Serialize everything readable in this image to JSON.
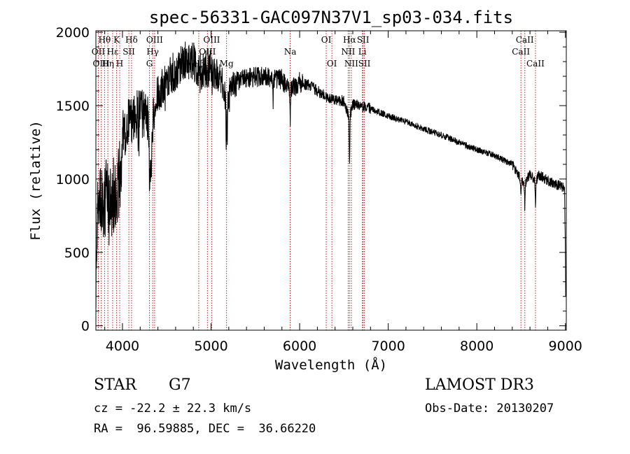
{
  "chart_data": {
    "type": "line",
    "title": "spec-56331-GAC097N37V1_sp03-034.fits",
    "xlabel": "Wavelength (Å)",
    "ylabel": "Flux (relative)",
    "xlim": [
      3700,
      9010
    ],
    "ylim": [
      -30,
      2010
    ],
    "xticks": [
      4000,
      5000,
      6000,
      7000,
      8000,
      9000
    ],
    "yticks": [
      0,
      500,
      1000,
      1500,
      2000
    ],
    "spectrum_anchors": [
      [
        3700,
        0
      ],
      [
        3705,
        600
      ],
      [
        3720,
        880
      ],
      [
        3740,
        760
      ],
      [
        3760,
        880
      ],
      [
        3790,
        820
      ],
      [
        3820,
        900
      ],
      [
        3850,
        860
      ],
      [
        3880,
        780
      ],
      [
        3900,
        920
      ],
      [
        3920,
        860
      ],
      [
        3940,
        800
      ],
      [
        3960,
        1050
      ],
      [
        3980,
        1000
      ],
      [
        4000,
        1350
      ],
      [
        4020,
        1280
      ],
      [
        4050,
        1380
      ],
      [
        4100,
        1400
      ],
      [
        4150,
        1430
      ],
      [
        4200,
        1480
      ],
      [
        4250,
        1440
      ],
      [
        4300,
        1400
      ],
      [
        4320,
        1000
      ],
      [
        4350,
        1450
      ],
      [
        4400,
        1580
      ],
      [
        4500,
        1680
      ],
      [
        4600,
        1740
      ],
      [
        4700,
        1800
      ],
      [
        4800,
        1820
      ],
      [
        4860,
        1700
      ],
      [
        4900,
        1760
      ],
      [
        5000,
        1740
      ],
      [
        5100,
        1700
      ],
      [
        5170,
        1560
      ],
      [
        5250,
        1640
      ],
      [
        5400,
        1690
      ],
      [
        5600,
        1700
      ],
      [
        5800,
        1680
      ],
      [
        5890,
        1600
      ],
      [
        6000,
        1660
      ],
      [
        6100,
        1640
      ],
      [
        6300,
        1560
      ],
      [
        6500,
        1530
      ],
      [
        6563,
        1420
      ],
      [
        6600,
        1510
      ],
      [
        6800,
        1480
      ],
      [
        7000,
        1430
      ],
      [
        7200,
        1390
      ],
      [
        7400,
        1340
      ],
      [
        7600,
        1300
      ],
      [
        7800,
        1250
      ],
      [
        8000,
        1200
      ],
      [
        8200,
        1160
      ],
      [
        8400,
        1100
      ],
      [
        8498,
        1000
      ],
      [
        8542,
        960
      ],
      [
        8600,
        1040
      ],
      [
        8662,
        980
      ],
      [
        8700,
        1030
      ],
      [
        8800,
        990
      ],
      [
        8900,
        960
      ],
      [
        8960,
        950
      ],
      [
        8990,
        930
      ],
      [
        9000,
        500
      ],
      [
        9005,
        0
      ]
    ],
    "absorption_dips": [
      [
        4305,
        380
      ],
      [
        5172,
        330
      ],
      [
        5183,
        300
      ],
      [
        5700,
        160
      ],
      [
        5893,
        220
      ],
      [
        6563,
        320
      ],
      [
        8498,
        130
      ],
      [
        8542,
        150
      ],
      [
        8662,
        140
      ]
    ],
    "emission_lines": [
      {
        "label": "Hθ",
        "wavelength": 3798,
        "row": 1
      },
      {
        "label": "OII",
        "wavelength": 3727,
        "row": 2
      },
      {
        "label": "OIII",
        "wavelength": 3760,
        "row": 3
      },
      {
        "label": "Hη",
        "wavelength": 3835,
        "row": 3
      },
      {
        "label": "Hε",
        "wavelength": 3889,
        "row": 2
      },
      {
        "label": "K",
        "wavelength": 3934,
        "row": 1
      },
      {
        "label": "H",
        "wavelength": 3969,
        "row": 3
      },
      {
        "label": "Hδ",
        "wavelength": 4102,
        "row": 1
      },
      {
        "label": "SII",
        "wavelength": 4072,
        "row": 2
      },
      {
        "label": "OIII",
        "wavelength": 4363,
        "row": 1
      },
      {
        "label": "Hγ",
        "wavelength": 4341,
        "row": 2
      },
      {
        "label": "G",
        "wavelength": 4305,
        "row": 3
      },
      {
        "label": "OIII",
        "wavelength": 5007,
        "row": 1
      },
      {
        "label": "OIII",
        "wavelength": 4959,
        "row": 2
      },
      {
        "label": "Hβ",
        "wavelength": 4861,
        "row": 3
      },
      {
        "label": "Mg",
        "wavelength": 5175,
        "row": 3
      },
      {
        "label": "Na",
        "wavelength": 5893,
        "row": 2
      },
      {
        "label": "OI",
        "wavelength": 6300,
        "row": 1
      },
      {
        "label": "OI",
        "wavelength": 6364,
        "row": 3
      },
      {
        "label": "Hα",
        "wavelength": 6563,
        "row": 1
      },
      {
        "label": "SII",
        "wavelength": 6716,
        "row": 1
      },
      {
        "label": "NII",
        "wavelength": 6548,
        "row": 2
      },
      {
        "label": "Li",
        "wavelength": 6708,
        "row": 2
      },
      {
        "label": "NII",
        "wavelength": 6583,
        "row": 3
      },
      {
        "label": "SII",
        "wavelength": 6731,
        "row": 3
      },
      {
        "label": "CaII",
        "wavelength": 8542,
        "row": 1
      },
      {
        "label": "CaII",
        "wavelength": 8498,
        "row": 2
      },
      {
        "label": "CaII",
        "wavelength": 8662,
        "row": 3
      }
    ],
    "line_color": "#000000",
    "marker_color": "#b22222"
  },
  "info": {
    "object_class": "STAR",
    "subclass": "G7",
    "survey": "LAMOST DR3",
    "redshift_text": "cz = -22.2 ± 22.3 km/s",
    "obs_date_text": "Obs-Date: 20130207",
    "coords_text": "RA =  96.59885, DEC =  36.66220"
  }
}
